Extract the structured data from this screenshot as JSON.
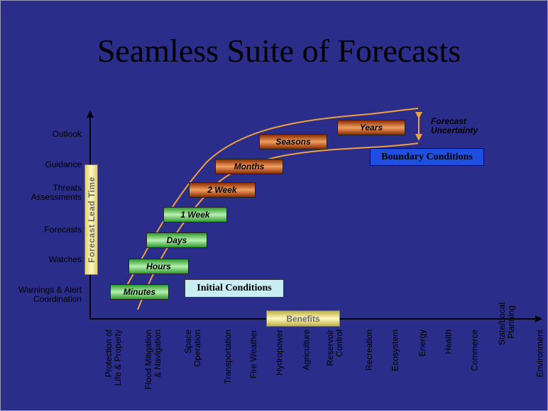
{
  "title": "Seamless Suite of Forecasts",
  "y_axis_label": "Forecast Lead Time",
  "y_categories": [
    "Outlook",
    "Guidance",
    "Threats Assessments",
    "Forecasts",
    "Watches",
    "Warnings & Alert Coordination"
  ],
  "time_boxes": [
    {
      "label": "Minutes",
      "style": "green"
    },
    {
      "label": "Hours",
      "style": "green"
    },
    {
      "label": "Days",
      "style": "green"
    },
    {
      "label": "1 Week",
      "style": "green"
    },
    {
      "label": "2 Week",
      "style": "brown"
    },
    {
      "label": "Months",
      "style": "brown"
    },
    {
      "label": "Seasons",
      "style": "brown"
    },
    {
      "label": "Years",
      "style": "brown"
    }
  ],
  "x_axis_label": "Benefits",
  "x_categories": [
    "Protection of Life & Property",
    "Flood Mitigation & Navigation",
    "Space Operation",
    "Transportation",
    "Fire Weather",
    "Hydropower",
    "Agriculture",
    "Reservoir Control",
    "Recreation",
    "Ecosystem",
    "Energy",
    "Health",
    "Commerce",
    "State/Local Planning",
    "Environment"
  ],
  "annotations": {
    "initial_conditions": "Initial Conditions",
    "boundary_conditions": "Boundary Conditions",
    "forecast_uncertainty": "Forecast Uncertainty"
  },
  "colors": {
    "background": "#2b2d8a",
    "uncertainty_curves": "#f0a040",
    "green_box": "#2f9a2f",
    "brown_box": "#8a2a00",
    "boundary_box": "#1f4fe0",
    "initial_box": "#c8eef4"
  }
}
